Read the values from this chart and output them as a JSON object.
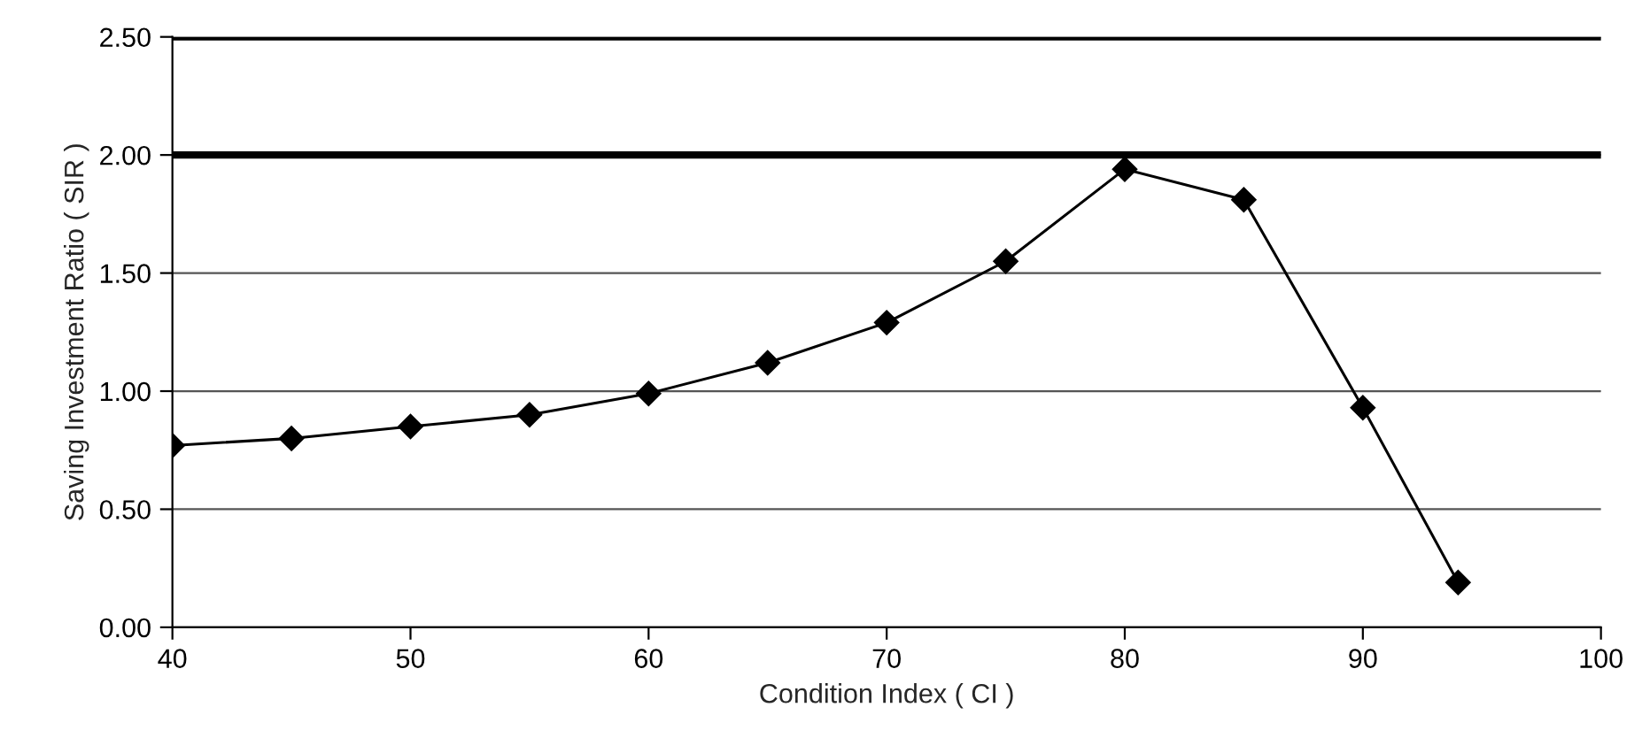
{
  "chart_data": {
    "type": "line",
    "xlabel": "Condition Index ( CI )",
    "ylabel": "Saving Investment Ratio ( SIR )",
    "x": [
      40,
      45,
      50,
      55,
      60,
      65,
      70,
      75,
      80,
      85,
      90,
      94
    ],
    "series": [
      {
        "color": "#000000",
        "values": [
          0.77,
          0.8,
          0.85,
          0.9,
          0.99,
          1.12,
          1.29,
          1.55,
          1.94,
          1.81,
          0.93,
          0.19
        ]
      }
    ],
    "marker": "diamond",
    "line_style": "solid",
    "xlim": [
      40,
      100
    ],
    "xticks": [
      40,
      50,
      60,
      70,
      80,
      90,
      100
    ],
    "ylim": [
      0,
      2.5
    ],
    "yticks": [
      {
        "value": 0,
        "label": "0.00"
      },
      {
        "value": 0.5,
        "label": "0.50"
      },
      {
        "value": 1,
        "label": "1.00"
      },
      {
        "value": 1.5,
        "label": "1.50"
      },
      {
        "value": 2,
        "label": "2.00"
      },
      {
        "value": 2.5,
        "label": "2.50"
      }
    ],
    "grid": "y",
    "ref_lines": [
      {
        "axis": "y",
        "value": 2,
        "color": "#000000",
        "line_style": "solid"
      },
      {
        "axis": "y",
        "value": 2.5,
        "color": "#000000",
        "line_style": "solid"
      }
    ]
  }
}
